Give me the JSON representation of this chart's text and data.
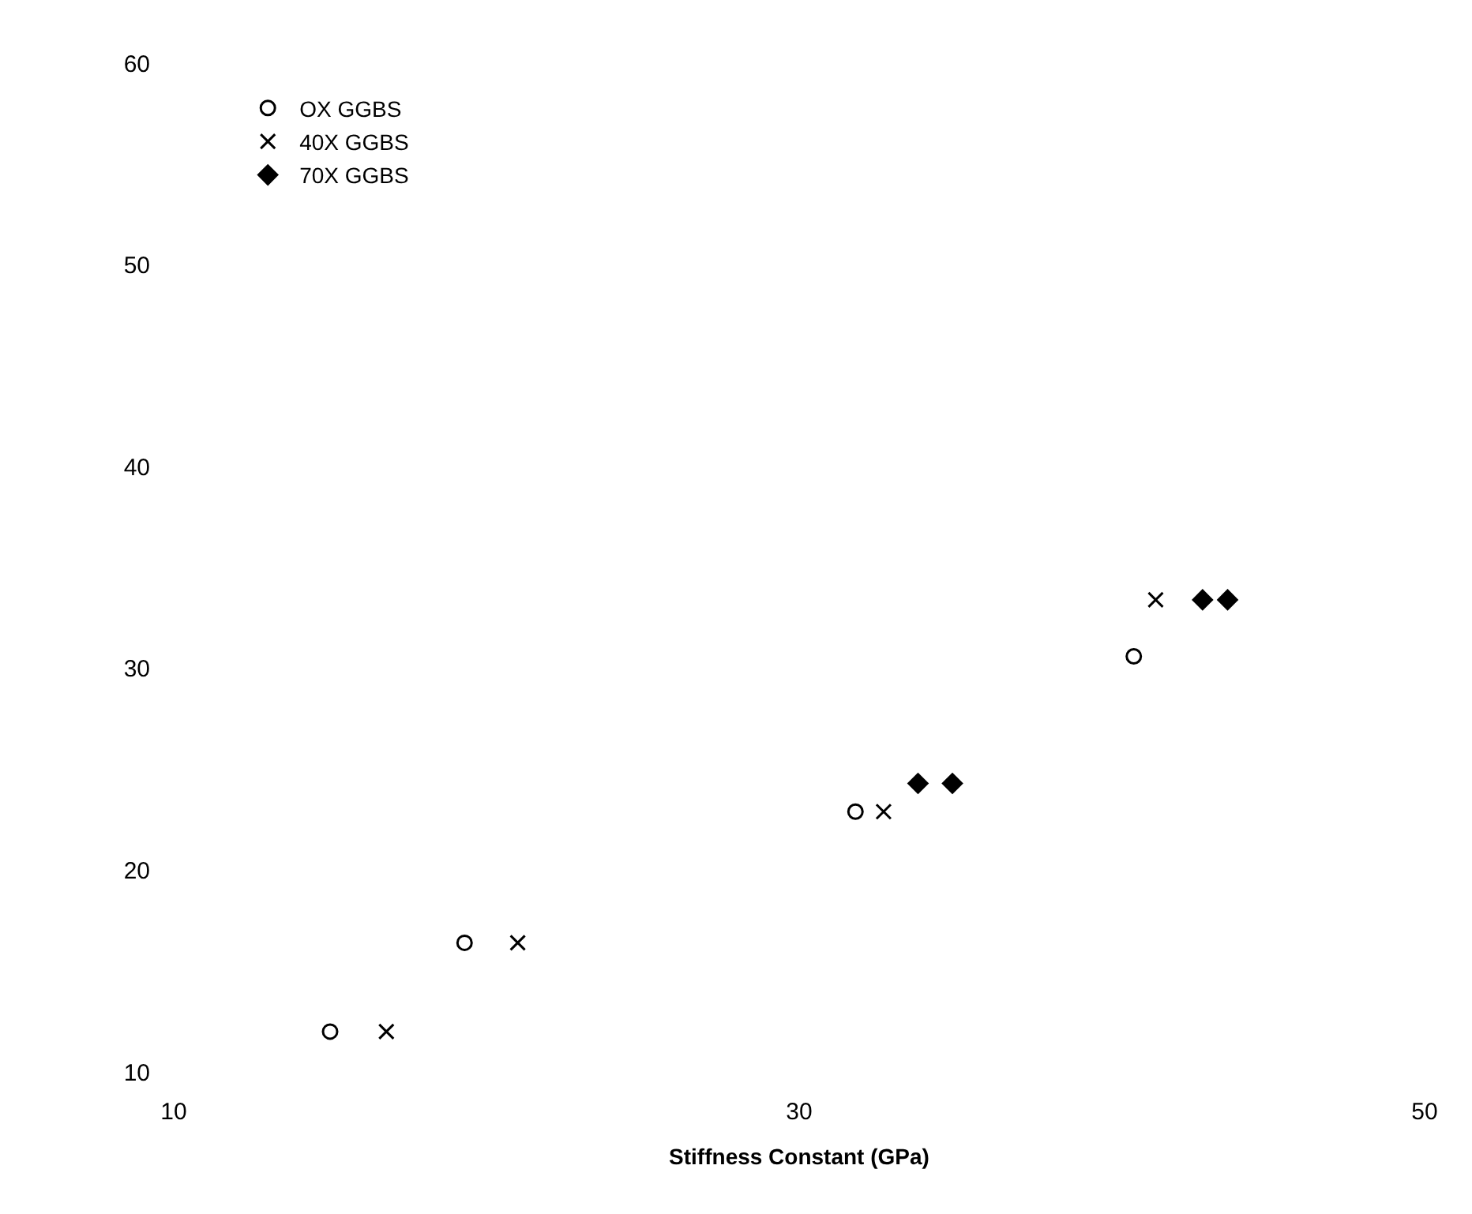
{
  "chart_data": {
    "type": "scatter",
    "xlabel": "Stiffness Constant (GPa)",
    "xlim": [
      10,
      50
    ],
    "ylim": [
      10,
      60
    ],
    "xticks": [
      10,
      30,
      50
    ],
    "yticks": [
      10,
      20,
      30,
      40,
      50,
      60
    ],
    "legend": "top left",
    "series": [
      {
        "name": "OX GGBS",
        "color": "#000000",
        "marker": "circle",
        "x": [
          15.0,
          19.3,
          31.8,
          40.7
        ],
        "values": [
          12.0,
          16.4,
          22.9,
          30.6
        ]
      },
      {
        "name": "40X GGBS",
        "color": "#000000",
        "marker": "cross",
        "x": [
          16.8,
          21.0,
          32.7,
          41.4
        ],
        "values": [
          12.0,
          16.4,
          22.9,
          33.4
        ]
      },
      {
        "name": "70X GGBS",
        "color": "#000000",
        "marker": "diamond",
        "x": [
          33.8,
          34.9,
          42.9,
          43.7
        ],
        "values": [
          24.3,
          24.3,
          33.4,
          33.4
        ]
      }
    ]
  }
}
